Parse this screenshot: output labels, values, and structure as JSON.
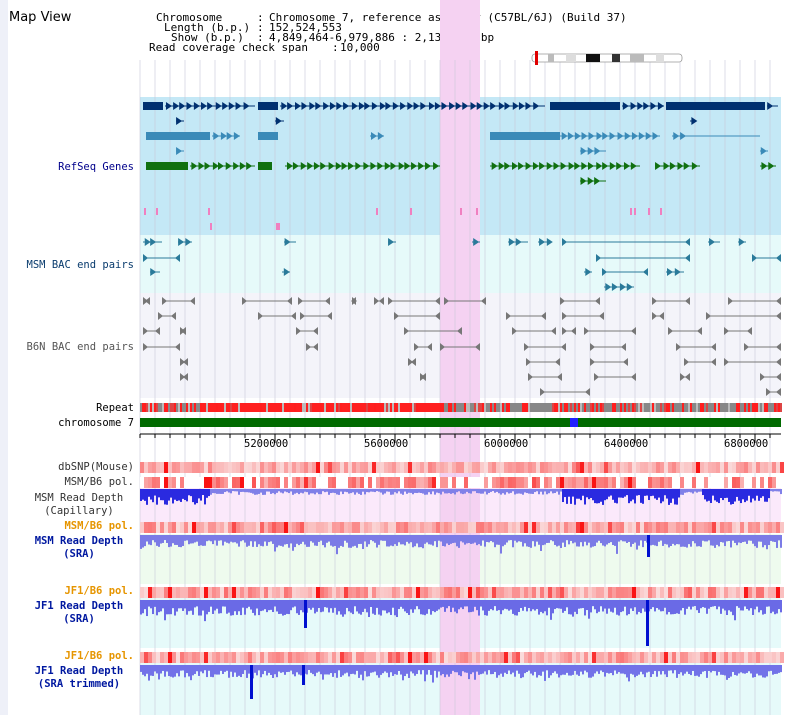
{
  "page": {
    "title": "Map View"
  },
  "header": {
    "chromosome_label": "Chromosome",
    "chromosome_value": "Chromosome 7, reference assembly (C57BL/6J) (Build 37)",
    "length_label": "Length (b.p.)",
    "length_value": "152,524,553",
    "show_label": "Show (b.p.)",
    "show_value": "4,849,464-6,979,886 : 2,130,423 bp",
    "coverage_label": "Read coverage check span",
    "coverage_value": "10,000"
  },
  "tracks": {
    "refseq": "RefSeq Genes",
    "msm_bac": "MSM BAC end pairs",
    "b6n_bac": "B6N BAC end pairs",
    "repeat": "Repeat",
    "chromosome": "chromosome 7",
    "dbsnp": "dbSNP(Mouse)",
    "msm_b6_pol_1": "MSM/B6 pol.",
    "msm_depth_cap_1": "MSM Read Depth",
    "msm_depth_cap_2": "(Capillary)",
    "msm_b6_pol_2": "MSM/B6 pol.",
    "msm_depth_sra_1": "MSM Read Depth",
    "msm_depth_sra_2": "(SRA)",
    "jf1_b6_pol_1": "JF1/B6 pol.",
    "jf1_depth_sra_1": "JF1 Read Depth",
    "jf1_depth_sra_2": "(SRA)",
    "jf1_b6_pol_2": "JF1/B6 pol.",
    "jf1_depth_trim_1": "JF1 Read Depth",
    "jf1_depth_trim_2": "(SRA trimmed)"
  },
  "axis": {
    "ticks": [
      "5200000",
      "5600000",
      "6000000",
      "6400000",
      "6800000"
    ]
  },
  "colors": {
    "highlight": "#f5d2f2",
    "refseq_bg": "#c4e8f6",
    "msm_bg": "#e6fafa",
    "b6n_bg": "#f4f4fa",
    "chromosome": "#006a00",
    "gene_dark": "#003070",
    "gene_mid": "#3a8ab8",
    "gene_green": "#107010",
    "depth_blue": "#3c3cd8"
  }
}
